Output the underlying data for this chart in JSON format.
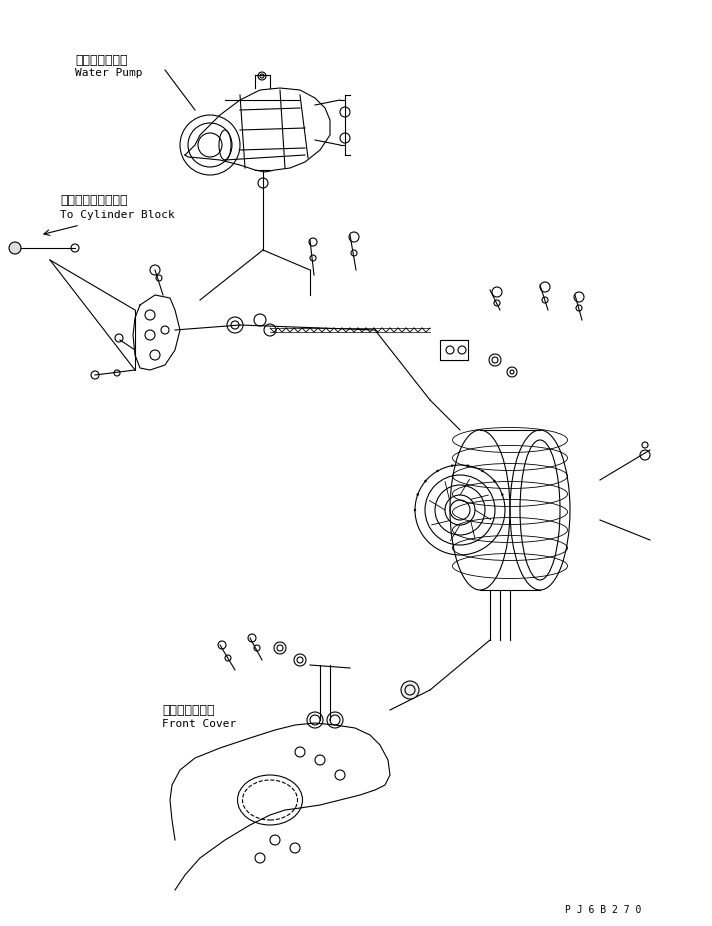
{
  "bg_color": "#ffffff",
  "line_color": "#000000",
  "text_color": "#000000",
  "font_size_label": 8,
  "font_size_jp": 9,
  "watermark": "P J 6 B 2 7 0",
  "labels": {
    "water_pump_jp": "ウォータポンプ",
    "water_pump_en": "Water Pump",
    "cylinder_jp": "シリンダブロックへ",
    "cylinder_en": "To Cylinder Block",
    "front_cover_jp": "フロントカバー",
    "front_cover_en": "Front Cover"
  }
}
